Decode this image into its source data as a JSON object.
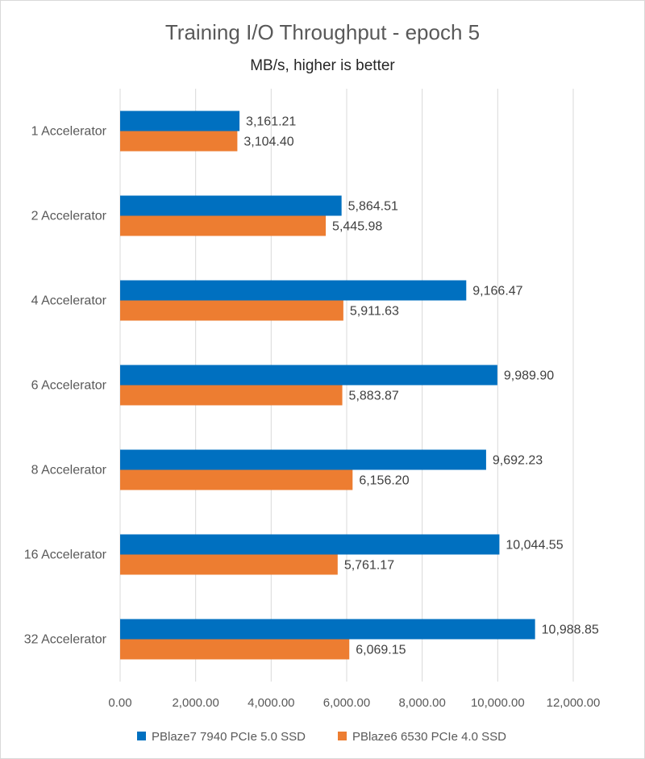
{
  "chart_data": {
    "type": "bar",
    "orientation": "horizontal",
    "title": "Training I/O Throughput - epoch 5",
    "subtitle": "MB/s, higher is better",
    "categories": [
      "1 Accelerator",
      "2 Accelerator",
      "4 Accelerator",
      "6 Accelerator",
      "8 Accelerator",
      "16 Accelerator",
      "32 Accelerator"
    ],
    "series": [
      {
        "name": "PBlaze7 7940 PCIe 5.0 SSD",
        "color": "#0070c0",
        "values": [
          3161.21,
          5864.51,
          9166.47,
          9989.9,
          9692.23,
          10044.55,
          10988.85
        ],
        "labels": [
          "3,161.21",
          "5,864.51",
          "9,166.47",
          "9,989.90",
          "9,692.23",
          "10,044.55",
          "10,988.85"
        ]
      },
      {
        "name": "PBlaze6 6530 PCIe 4.0 SSD",
        "color": "#ed7d31",
        "values": [
          3104.4,
          5445.98,
          5911.63,
          5883.87,
          6156.2,
          5761.17,
          6069.15
        ],
        "labels": [
          "3,104.40",
          "5,445.98",
          "5,911.63",
          "5,883.87",
          "6,156.20",
          "5,761.17",
          "6,069.15"
        ]
      }
    ],
    "xlim": [
      0,
      12000
    ],
    "xticks": [
      0,
      2000,
      4000,
      6000,
      8000,
      10000,
      12000
    ],
    "xtick_labels": [
      "0.00",
      "2,000.00",
      "4,000.00",
      "6,000.00",
      "8,000.00",
      "10,000.00",
      "12,000.00"
    ],
    "grid": true,
    "legend_position": "bottom"
  }
}
